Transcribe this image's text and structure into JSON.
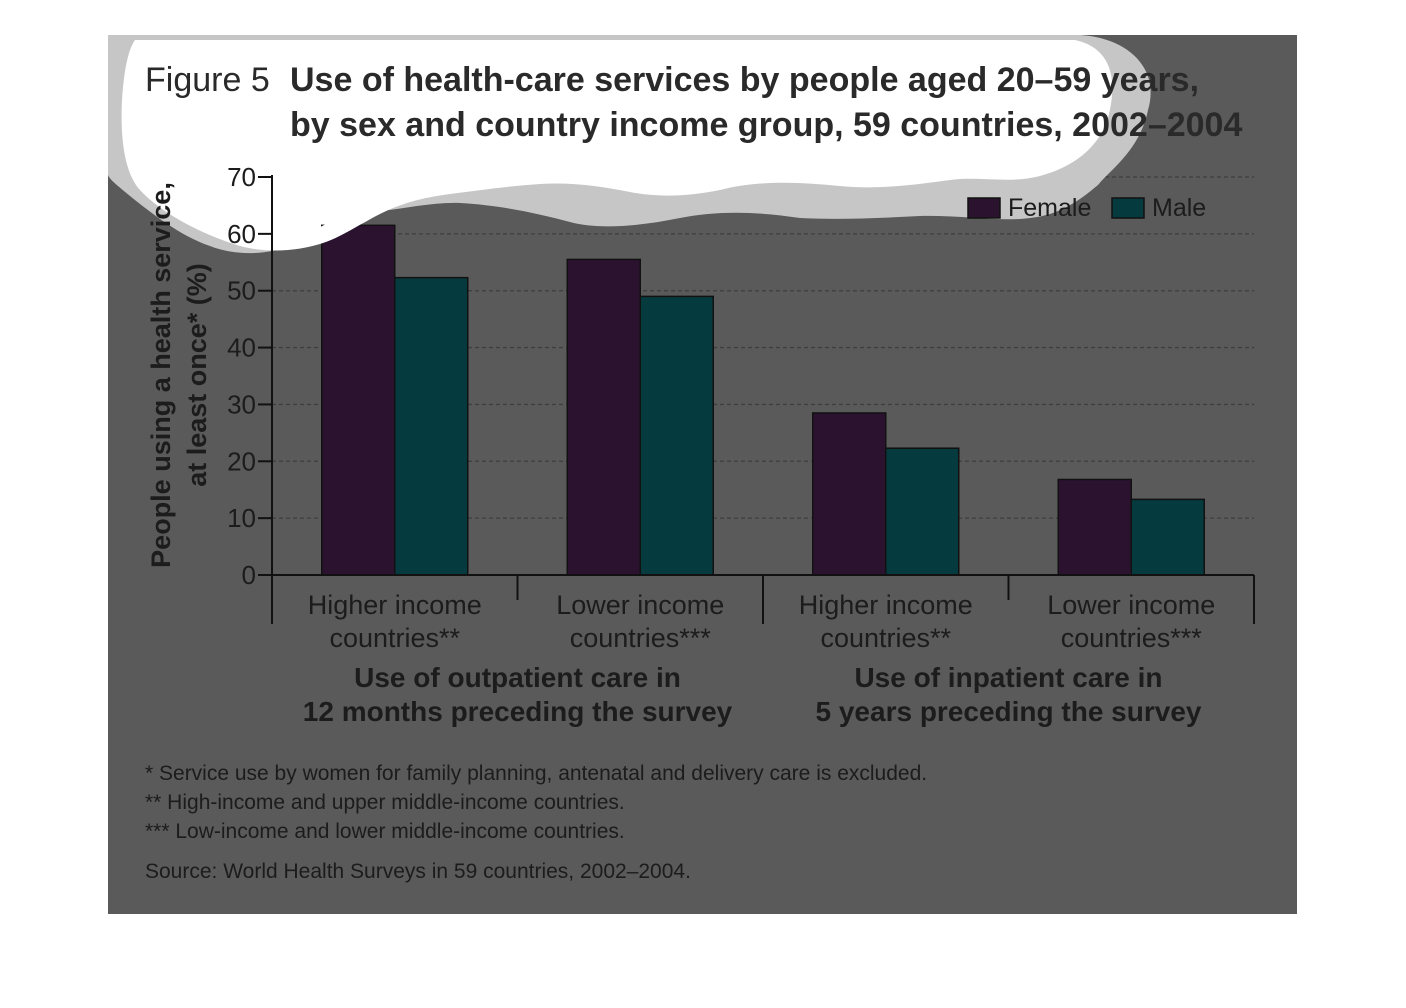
{
  "figure": {
    "label": "Figure 5",
    "title_lines": [
      "Use of health-care services by people aged 20–59 years,",
      "by sex and country income group, 59 countries, 2002–2004"
    ]
  },
  "colors": {
    "background": "#5a5a5a",
    "female": "#2b1330",
    "male": "#053a3f",
    "female_highlight": "#662a6c",
    "text": "#1c1c1c"
  },
  "chart_data": {
    "type": "bar",
    "ylabel_lines": [
      "People using a health service,",
      "at least once* (%)"
    ],
    "ylim": [
      0,
      70
    ],
    "yticks": [
      0,
      10,
      20,
      30,
      40,
      50,
      60,
      70
    ],
    "grid": true,
    "legend_position": "top-right",
    "categories": [
      [
        "Higher income",
        "countries**"
      ],
      [
        "Lower income",
        "countries***"
      ],
      [
        "Higher income",
        "countries**"
      ],
      [
        "Lower income",
        "countries***"
      ]
    ],
    "groups": [
      {
        "label_lines": [
          "Use of outpatient care in",
          "12 months preceding the survey"
        ],
        "categories": [
          0,
          1
        ]
      },
      {
        "label_lines": [
          "Use of inpatient care in",
          "5 years preceding the survey"
        ],
        "categories": [
          2,
          3
        ]
      }
    ],
    "series": [
      {
        "name": "Female",
        "values": [
          61.5,
          55.5,
          28.5,
          16.8
        ]
      },
      {
        "name": "Male",
        "values": [
          52.3,
          49.0,
          22.3,
          13.3
        ]
      }
    ]
  },
  "notes": [
    "* Service use by women for family planning, antenatal and delivery care is excluded.",
    "** High-income and upper middle-income countries.",
    "*** Low-income and lower middle-income countries."
  ],
  "source": "Source: World Health Surveys in 59 countries, 2002–2004."
}
